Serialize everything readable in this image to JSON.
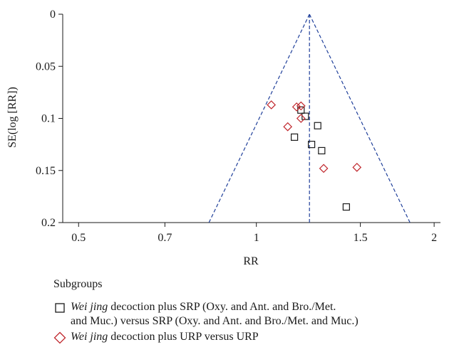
{
  "chart_data": {
    "type": "scatter",
    "title": "",
    "xlabel": "RR",
    "ylabel": "SE(log [RR])",
    "x_scale": "log",
    "xlim": [
      0.47,
      2.05
    ],
    "ylim": [
      0,
      0.2
    ],
    "y_inverted": true,
    "x_ticks": [
      0.5,
      0.7,
      1,
      1.5,
      2
    ],
    "x_tick_labels": [
      "0.5",
      "0.7",
      "1",
      "1.5",
      "2"
    ],
    "y_ticks": [
      0,
      0.05,
      0.1,
      0.15,
      0.2
    ],
    "y_tick_labels": [
      "0",
      "0.05",
      "0.1",
      "0.15",
      "0.2"
    ],
    "pooled_rr": 1.23,
    "funnel_limit_color": "#1f3f9a",
    "series": [
      {
        "marker": "square",
        "color": "#1a1a1a",
        "points": [
          {
            "x": 1.19,
            "y": 0.092
          },
          {
            "x": 1.21,
            "y": 0.098
          },
          {
            "x": 1.27,
            "y": 0.107
          },
          {
            "x": 1.16,
            "y": 0.118
          },
          {
            "x": 1.24,
            "y": 0.125
          },
          {
            "x": 1.29,
            "y": 0.131
          },
          {
            "x": 1.42,
            "y": 0.185
          }
        ]
      },
      {
        "marker": "diamond",
        "color": "#c0272d",
        "points": [
          {
            "x": 1.06,
            "y": 0.087
          },
          {
            "x": 1.17,
            "y": 0.089
          },
          {
            "x": 1.19,
            "y": 0.088
          },
          {
            "x": 1.19,
            "y": 0.1
          },
          {
            "x": 1.13,
            "y": 0.108
          },
          {
            "x": 1.3,
            "y": 0.148
          },
          {
            "x": 1.48,
            "y": 0.147
          }
        ]
      }
    ]
  },
  "legend": {
    "title": "Subgroups",
    "items": [
      {
        "marker": "square",
        "italic": "Wei jing",
        "text_line1": " decoction plus SRP (Oxy. and Ant. and Bro./Met.",
        "text_line2": "and Muc.) versus SRP (Oxy. and Ant. and Bro./Met. and Muc.)"
      },
      {
        "marker": "diamond",
        "italic": "Wei jing",
        "text_line1": " decoction plus URP versus URP",
        "text_line2": ""
      }
    ]
  }
}
